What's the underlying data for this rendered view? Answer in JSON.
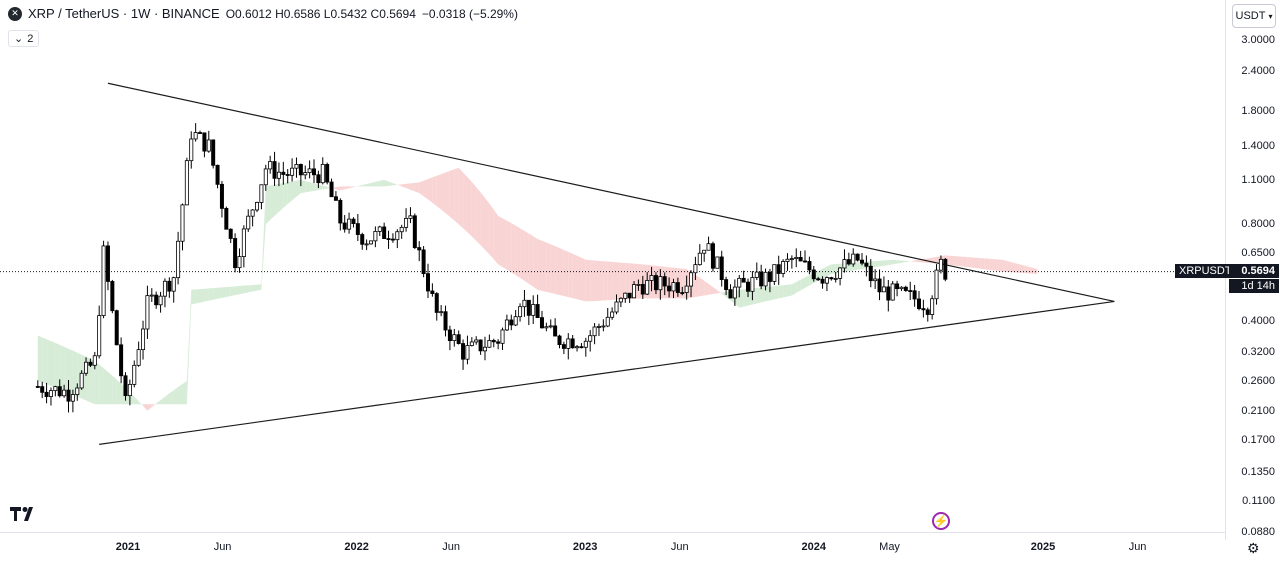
{
  "header": {
    "symbol": "XRP / TetherUS · 1W · BINANCE",
    "open_label": "O",
    "open": "0.6012",
    "high_label": "H",
    "high": "0.6586",
    "low_label": "L",
    "low": "0.5432",
    "close_label": "C",
    "close": "0.5694",
    "change": "−0.0318 (−5.29%)",
    "indicators_count": "2",
    "currency": "USDT"
  },
  "price_axis_labels": [
    "3.0000",
    "2.4000",
    "1.8000",
    "1.4000",
    "1.1000",
    "0.8000",
    "0.6500",
    "0.4000",
    "0.3200",
    "0.2600",
    "0.2100",
    "0.1700",
    "0.1350",
    "0.1100",
    "0.0880"
  ],
  "price_tag": {
    "symbol": "XRPUSDT",
    "price": "0.5694",
    "countdown": "1d 14h"
  },
  "colors": {
    "up": "#ffffff",
    "down": "#000000",
    "wick": "#000000",
    "cloud_bear": "#f7c6c6",
    "cloud_bull": "#c8e6c9",
    "trendline": "#1c1c1c",
    "accent": "#9c27b0"
  },
  "icons": {
    "symbol_logo": "xrp-logo-icon",
    "brand": "tradingview-logo-icon",
    "flash": "lightning-icon",
    "settings": "gear-icon",
    "toggle": "chevron-down-icon"
  },
  "chart_data": {
    "type": "candlestick",
    "scale": "log",
    "x_ticks": [
      {
        "label": "2021",
        "date": "2021-01-01",
        "year": true
      },
      {
        "label": "Jun",
        "date": "2021-06-01",
        "year": false
      },
      {
        "label": "2022",
        "date": "2022-01-01",
        "year": true
      },
      {
        "label": "Jun",
        "date": "2022-06-01",
        "year": false
      },
      {
        "label": "2023",
        "date": "2023-01-01",
        "year": true
      },
      {
        "label": "Jun",
        "date": "2023-06-01",
        "year": false
      },
      {
        "label": "2024",
        "date": "2024-01-01",
        "year": true
      },
      {
        "label": "May",
        "date": "2024-05-01",
        "year": false
      },
      {
        "label": "2025",
        "date": "2025-01-01",
        "year": true
      },
      {
        "label": "Jun",
        "date": "2025-06-01",
        "year": false
      }
    ],
    "ylim": [
      0.088,
      3.0
    ],
    "last_price": 0.5694,
    "trendlines": [
      {
        "name": "upper",
        "from": {
          "date": "2020-11-30",
          "price": 2.2
        },
        "to": {
          "date": "2025-04-25",
          "price": 0.46
        }
      },
      {
        "name": "lower",
        "from": {
          "date": "2020-11-16",
          "price": 0.165
        },
        "to": {
          "date": "2025-04-25",
          "price": 0.46
        }
      }
    ],
    "anchors": [
      {
        "date": "2020-08-10",
        "price": 0.25
      },
      {
        "date": "2020-09-28",
        "price": 0.24
      },
      {
        "date": "2020-11-09",
        "price": 0.3
      },
      {
        "date": "2020-11-23",
        "price": 0.65
      },
      {
        "date": "2020-12-28",
        "price": 0.22
      },
      {
        "date": "2021-02-01",
        "price": 0.45
      },
      {
        "date": "2021-03-15",
        "price": 0.55
      },
      {
        "date": "2021-04-12",
        "price": 1.55
      },
      {
        "date": "2021-05-10",
        "price": 1.4
      },
      {
        "date": "2021-06-21",
        "price": 0.62
      },
      {
        "date": "2021-08-09",
        "price": 1.2
      },
      {
        "date": "2021-09-06",
        "price": 1.15
      },
      {
        "date": "2021-11-08",
        "price": 1.15
      },
      {
        "date": "2021-12-06",
        "price": 0.82
      },
      {
        "date": "2022-01-17",
        "price": 0.72
      },
      {
        "date": "2022-03-28",
        "price": 0.8
      },
      {
        "date": "2022-05-09",
        "price": 0.42
      },
      {
        "date": "2022-06-20",
        "price": 0.32
      },
      {
        "date": "2022-08-15",
        "price": 0.35
      },
      {
        "date": "2022-09-19",
        "price": 0.47
      },
      {
        "date": "2022-11-14",
        "price": 0.35
      },
      {
        "date": "2023-01-02",
        "price": 0.35
      },
      {
        "date": "2023-03-27",
        "price": 0.52
      },
      {
        "date": "2023-06-05",
        "price": 0.52
      },
      {
        "date": "2023-07-10",
        "price": 0.7
      },
      {
        "date": "2023-08-21",
        "price": 0.5
      },
      {
        "date": "2023-10-23",
        "price": 0.55
      },
      {
        "date": "2023-11-27",
        "price": 0.62
      },
      {
        "date": "2024-01-15",
        "price": 0.55
      },
      {
        "date": "2024-03-11",
        "price": 0.62
      },
      {
        "date": "2024-04-15",
        "price": 0.5
      },
      {
        "date": "2024-06-10",
        "price": 0.47
      },
      {
        "date": "2024-07-01",
        "price": 0.45
      },
      {
        "date": "2024-07-22",
        "price": 0.6
      },
      {
        "date": "2024-07-29",
        "price": 0.5694
      }
    ],
    "cloud_anchors": [
      {
        "date": "2020-08-10",
        "a": 0.36,
        "b": 0.26
      },
      {
        "date": "2020-11-09",
        "a": 0.3,
        "b": 0.22
      },
      {
        "date": "2021-02-01",
        "a": 0.21,
        "b": 0.22
      },
      {
        "date": "2021-04-05",
        "a": 0.26,
        "b": 0.22
      },
      {
        "date": "2021-04-12",
        "a": 0.5,
        "b": 0.45
      },
      {
        "date": "2021-08-02",
        "a": 0.52,
        "b": 0.5
      },
      {
        "date": "2021-08-09",
        "a": 1.05,
        "b": 0.8
      },
      {
        "date": "2021-10-04",
        "a": 1.1,
        "b": 1.0
      },
      {
        "date": "2021-12-06",
        "a": 1.02,
        "b": 1.05
      },
      {
        "date": "2022-02-14",
        "a": 1.1,
        "b": 1.05
      },
      {
        "date": "2022-04-11",
        "a": 1.0,
        "b": 1.08
      },
      {
        "date": "2022-06-13",
        "a": 0.8,
        "b": 1.2
      },
      {
        "date": "2022-08-15",
        "a": 0.6,
        "b": 0.85
      },
      {
        "date": "2022-10-17",
        "a": 0.5,
        "b": 0.72
      },
      {
        "date": "2023-01-02",
        "a": 0.46,
        "b": 0.62
      },
      {
        "date": "2023-04-03",
        "a": 0.47,
        "b": 0.6
      },
      {
        "date": "2023-06-12",
        "a": 0.47,
        "b": 0.58
      },
      {
        "date": "2023-09-04",
        "a": 0.5,
        "b": 0.44
      },
      {
        "date": "2023-11-27",
        "a": 0.52,
        "b": 0.48
      },
      {
        "date": "2024-01-29",
        "a": 0.6,
        "b": 0.56
      },
      {
        "date": "2024-05-06",
        "a": 0.62,
        "b": 0.6
      },
      {
        "date": "2024-07-29",
        "a": 0.6,
        "b": 0.64
      },
      {
        "date": "2024-10-28",
        "a": 0.57,
        "b": 0.62
      },
      {
        "date": "2024-12-23",
        "a": 0.56,
        "b": 0.58
      }
    ]
  }
}
